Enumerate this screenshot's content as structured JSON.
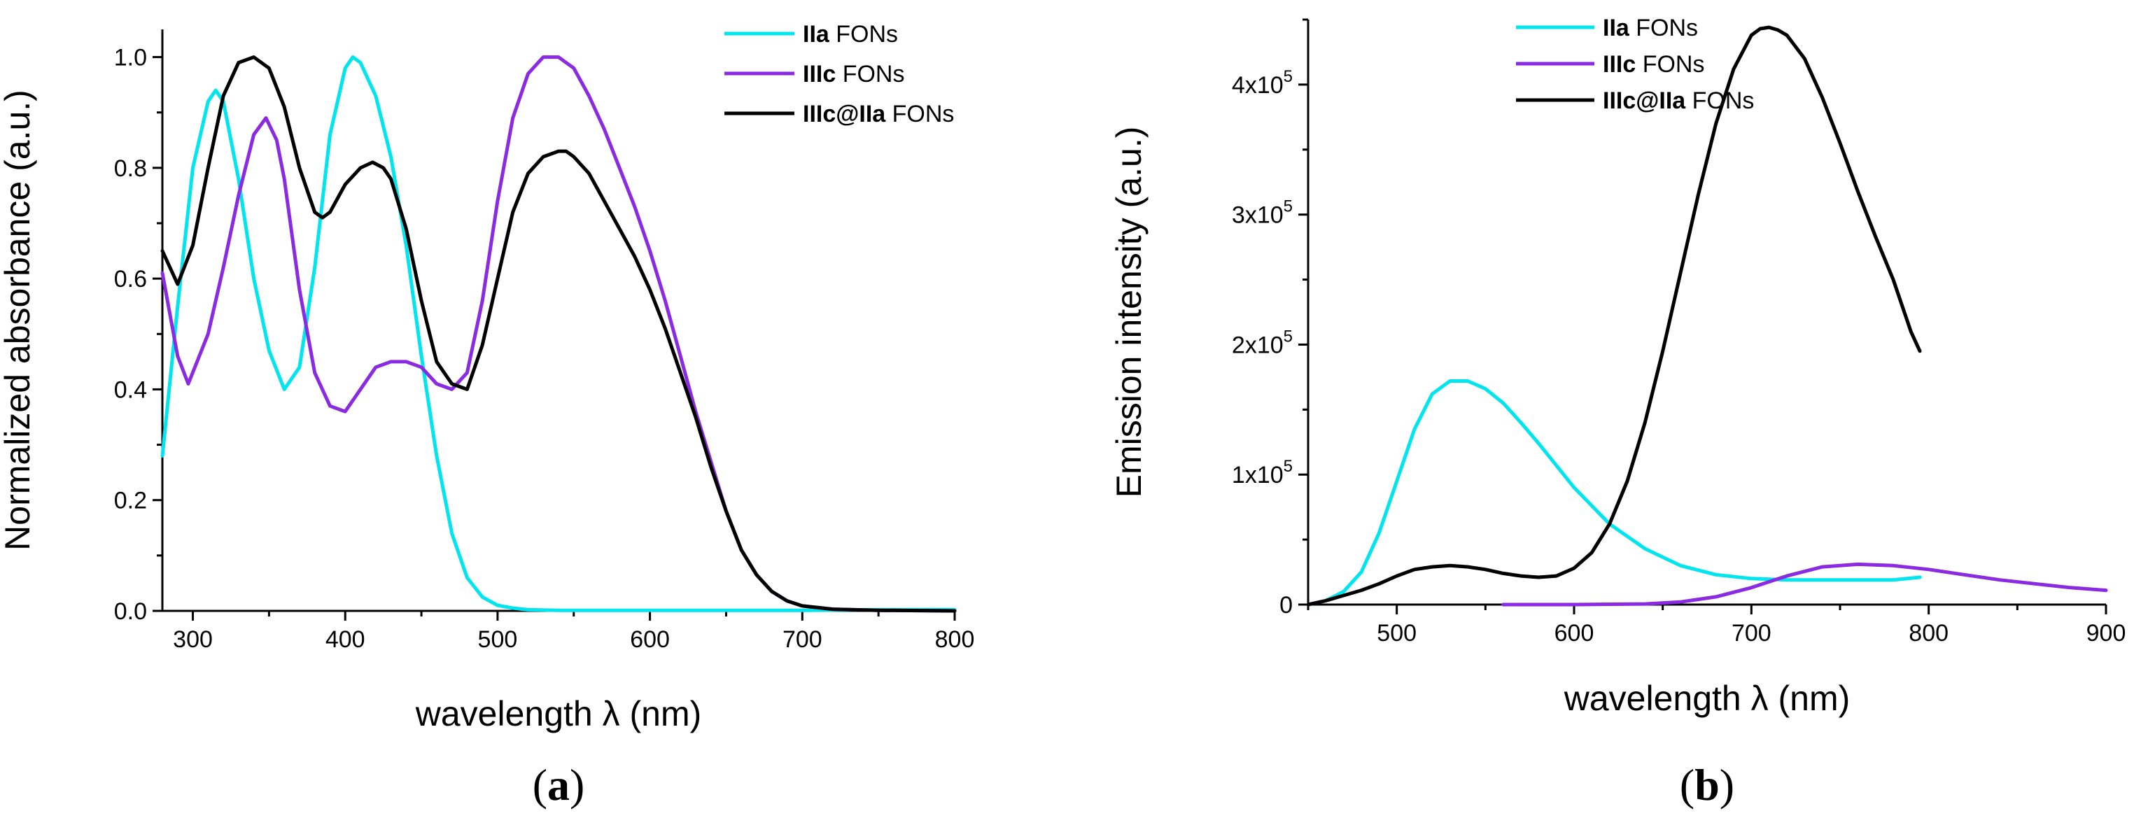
{
  "colors": {
    "IIa": "#00e5ee",
    "IIIc": "#8a2be2",
    "IIIc@IIa": "#000000"
  },
  "chart_data": [
    {
      "id": "a",
      "type": "line",
      "panel_label": "(a)",
      "panel_letter": "a",
      "xlabel": "wavelength λ (nm)",
      "ylabel": "Normalized absorbance (a.u.)",
      "xlim": [
        280,
        800
      ],
      "ylim": [
        0,
        1.05
      ],
      "xticks": [
        300,
        400,
        500,
        600,
        700,
        800
      ],
      "yticks": [
        0.0,
        0.2,
        0.4,
        0.6,
        0.8,
        1.0
      ],
      "ytick_labels": [
        "0.0",
        "0.2",
        "0.4",
        "0.6",
        "0.8",
        "1.0"
      ],
      "legend_position": "top-right",
      "series": [
        {
          "key": "IIa",
          "name": "IIa FONs",
          "bold": "IIa",
          "rest": " FONs",
          "x": [
            280,
            290,
            300,
            310,
            315,
            320,
            330,
            340,
            350,
            360,
            370,
            380,
            390,
            400,
            405,
            410,
            420,
            430,
            440,
            450,
            460,
            470,
            480,
            490,
            500,
            510,
            520,
            540,
            560,
            600,
            650,
            700,
            750,
            800
          ],
          "y": [
            0.28,
            0.55,
            0.8,
            0.92,
            0.94,
            0.92,
            0.78,
            0.6,
            0.47,
            0.4,
            0.44,
            0.62,
            0.86,
            0.98,
            1.0,
            0.99,
            0.93,
            0.82,
            0.66,
            0.46,
            0.28,
            0.14,
            0.06,
            0.025,
            0.01,
            0.005,
            0.002,
            0.001,
            0.001,
            0.001,
            0.001,
            0.001,
            0.002,
            0.002
          ]
        },
        {
          "key": "IIIc",
          "name": "IIIc FONs",
          "bold": "IIIc",
          "rest": " FONs",
          "x": [
            280,
            290,
            297,
            310,
            320,
            330,
            340,
            348,
            355,
            360,
            370,
            380,
            390,
            400,
            410,
            420,
            430,
            440,
            450,
            460,
            470,
            480,
            490,
            500,
            510,
            520,
            530,
            540,
            545,
            550,
            560,
            570,
            580,
            590,
            600,
            610,
            620,
            630,
            640,
            650,
            660,
            670,
            680,
            690,
            700,
            720,
            750,
            800
          ],
          "y": [
            0.61,
            0.46,
            0.41,
            0.5,
            0.62,
            0.75,
            0.86,
            0.89,
            0.85,
            0.78,
            0.58,
            0.43,
            0.37,
            0.36,
            0.4,
            0.44,
            0.45,
            0.45,
            0.44,
            0.41,
            0.4,
            0.43,
            0.56,
            0.74,
            0.89,
            0.97,
            1.0,
            1.0,
            0.99,
            0.98,
            0.93,
            0.87,
            0.8,
            0.73,
            0.65,
            0.56,
            0.46,
            0.36,
            0.27,
            0.18,
            0.11,
            0.065,
            0.035,
            0.018,
            0.009,
            0.003,
            0.001,
            0.0
          ]
        },
        {
          "key": "IIIc@IIa",
          "name": "IIIc@IIa FONs",
          "bold": "IIIc@IIa",
          "rest": " FONs",
          "x": [
            280,
            290,
            300,
            310,
            320,
            330,
            340,
            350,
            360,
            370,
            380,
            385,
            390,
            400,
            410,
            418,
            425,
            430,
            440,
            450,
            460,
            470,
            480,
            490,
            500,
            510,
            520,
            530,
            540,
            545,
            550,
            560,
            570,
            580,
            590,
            600,
            610,
            620,
            630,
            640,
            650,
            660,
            670,
            680,
            690,
            700,
            720,
            750,
            800
          ],
          "y": [
            0.65,
            0.59,
            0.66,
            0.8,
            0.93,
            0.99,
            1.0,
            0.98,
            0.91,
            0.8,
            0.72,
            0.71,
            0.72,
            0.77,
            0.8,
            0.81,
            0.8,
            0.78,
            0.69,
            0.56,
            0.45,
            0.41,
            0.4,
            0.48,
            0.6,
            0.72,
            0.79,
            0.82,
            0.83,
            0.83,
            0.82,
            0.79,
            0.74,
            0.69,
            0.64,
            0.58,
            0.51,
            0.43,
            0.35,
            0.26,
            0.18,
            0.11,
            0.065,
            0.035,
            0.018,
            0.009,
            0.003,
            0.001,
            0.0
          ]
        }
      ]
    },
    {
      "id": "b",
      "type": "line",
      "panel_label": "(b)",
      "panel_letter": "b",
      "xlabel": "wavelength λ (nm)",
      "ylabel": "Emission intensity (a.u.)",
      "xlim": [
        450,
        900
      ],
      "ylim": [
        0,
        450000
      ],
      "xticks": [
        500,
        600,
        700,
        800,
        900
      ],
      "yticks": [
        0,
        100000,
        200000,
        300000,
        400000
      ],
      "ytick_labels": [
        {
          "mant": "0",
          "exp": ""
        },
        {
          "mant": "1x10",
          "exp": "5"
        },
        {
          "mant": "2x10",
          "exp": "5"
        },
        {
          "mant": "3x10",
          "exp": "5"
        },
        {
          "mant": "4x10",
          "exp": "5"
        }
      ],
      "legend_position": "top-left",
      "series": [
        {
          "key": "IIa",
          "name": "IIa FONs",
          "bold": "IIa",
          "rest": " FONs",
          "x": [
            450,
            460,
            470,
            480,
            490,
            500,
            510,
            520,
            530,
            540,
            550,
            560,
            570,
            580,
            590,
            600,
            620,
            640,
            660,
            680,
            700,
            720,
            740,
            760,
            780,
            795
          ],
          "y": [
            0,
            3000,
            10000,
            25000,
            55000,
            95000,
            135000,
            162000,
            172000,
            172000,
            166000,
            155000,
            140000,
            124000,
            107000,
            90000,
            62000,
            43000,
            30000,
            23000,
            20000,
            19000,
            19000,
            19000,
            19000,
            21000
          ]
        },
        {
          "key": "IIIc",
          "name": "IIIc FONs",
          "bold": "IIIc",
          "rest": " FONs",
          "x": [
            560,
            600,
            640,
            660,
            680,
            700,
            720,
            740,
            760,
            780,
            800,
            820,
            840,
            860,
            880,
            900
          ],
          "y": [
            0,
            0,
            500,
            2000,
            6000,
            13000,
            22000,
            29000,
            31000,
            30000,
            27000,
            23000,
            19000,
            16000,
            13000,
            11000
          ]
        },
        {
          "key": "IIIc@IIa",
          "name": "IIIc@IIa FONs",
          "bold": "IIIc@IIa",
          "rest": " FONs",
          "x": [
            450,
            460,
            470,
            480,
            490,
            500,
            510,
            520,
            530,
            540,
            550,
            560,
            570,
            580,
            590,
            600,
            610,
            620,
            630,
            640,
            650,
            660,
            670,
            680,
            690,
            700,
            705,
            710,
            715,
            720,
            730,
            740,
            750,
            760,
            770,
            780,
            790,
            795
          ],
          "y": [
            0,
            3000,
            7000,
            11000,
            16000,
            22000,
            27000,
            29000,
            30000,
            29000,
            27000,
            24000,
            22000,
            21000,
            22000,
            28000,
            40000,
            62000,
            95000,
            140000,
            195000,
            255000,
            315000,
            370000,
            412000,
            438000,
            443000,
            444000,
            442000,
            438000,
            420000,
            390000,
            355000,
            318000,
            283000,
            250000,
            210000,
            195000
          ]
        }
      ]
    }
  ]
}
